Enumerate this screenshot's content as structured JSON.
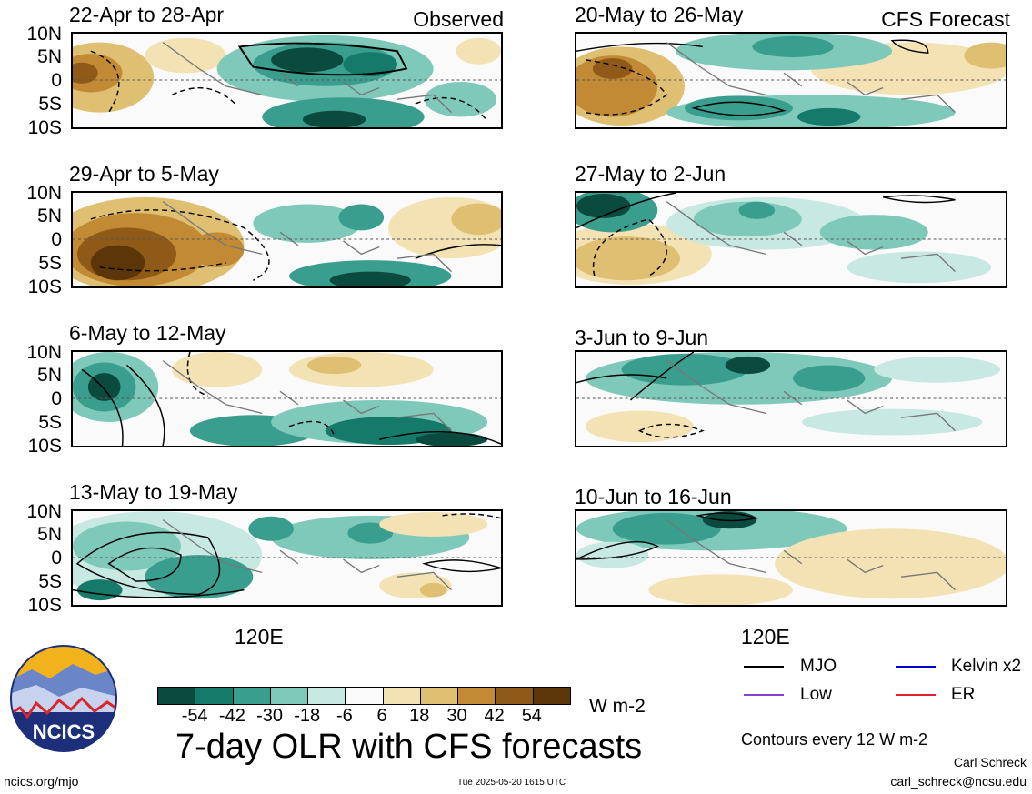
{
  "panels_left": [
    {
      "title": "22-Apr to 28-Apr",
      "tag": "Observed"
    },
    {
      "title": "29-Apr to 5-May",
      "tag": ""
    },
    {
      "title": "6-May to 12-May",
      "tag": ""
    },
    {
      "title": "13-May to 19-May",
      "tag": ""
    }
  ],
  "panels_right": [
    {
      "title": "20-May to 26-May",
      "tag": "CFS Forecast"
    },
    {
      "title": "27-May to 2-Jun",
      "tag": ""
    },
    {
      "title": "3-Jun to 9-Jun",
      "tag": ""
    },
    {
      "title": "10-Jun to 16-Jun",
      "tag": ""
    }
  ],
  "y_ticks": [
    "10N",
    "5N",
    "0",
    "5S",
    "10S"
  ],
  "x_tick": "120E",
  "colorbar": {
    "labels": [
      "-54",
      "-42",
      "-30",
      "-18",
      "-6",
      "6",
      "18",
      "30",
      "42",
      "54"
    ],
    "colors": [
      "#0b4a3f",
      "#167a6b",
      "#3a9e8f",
      "#7fc9bb",
      "#c8e9e2",
      "#fafafa",
      "#f3e2b4",
      "#dfbf72",
      "#c38a36",
      "#8f5a17",
      "#5a3608"
    ],
    "unit": "W m-2"
  },
  "main_title": "7-day OLR with CFS forecasts",
  "legend": {
    "items": [
      {
        "label": "MJO",
        "color": "#000000"
      },
      {
        "label": "Kelvin x2",
        "color": "#0000cc"
      },
      {
        "label": "Low",
        "color": "#8a3fd1"
      },
      {
        "label": "ER",
        "color": "#e0202a"
      }
    ],
    "contours_note": "Contours every 12 W m-2"
  },
  "logo": {
    "text": "NCICS"
  },
  "footer": {
    "left": "ncics.org/mjo",
    "center": "Tue 2025-05-20 1615 UTC",
    "author": "Carl Schreck",
    "email": "carl_schreck@ncsu.edu"
  },
  "chart_data": {
    "type": "heatmap",
    "title": "7-day OLR with CFS forecasts",
    "units": "W m-2",
    "y_ticks": [
      "10N",
      "5N",
      "0",
      "5S",
      "10S"
    ],
    "x_ticks": [
      "120E"
    ],
    "color_levels": [
      -54,
      -42,
      -30,
      -18,
      -6,
      6,
      18,
      30,
      42,
      54
    ],
    "contour_interval": 12,
    "observed_periods": [
      "22-Apr to 28-Apr",
      "29-Apr to 5-May",
      "6-May to 12-May",
      "13-May to 19-May"
    ],
    "forecast_periods": [
      "20-May to 26-May",
      "27-May to 2-Jun",
      "3-Jun to 9-Jun",
      "10-Jun to 16-Jun"
    ]
  }
}
